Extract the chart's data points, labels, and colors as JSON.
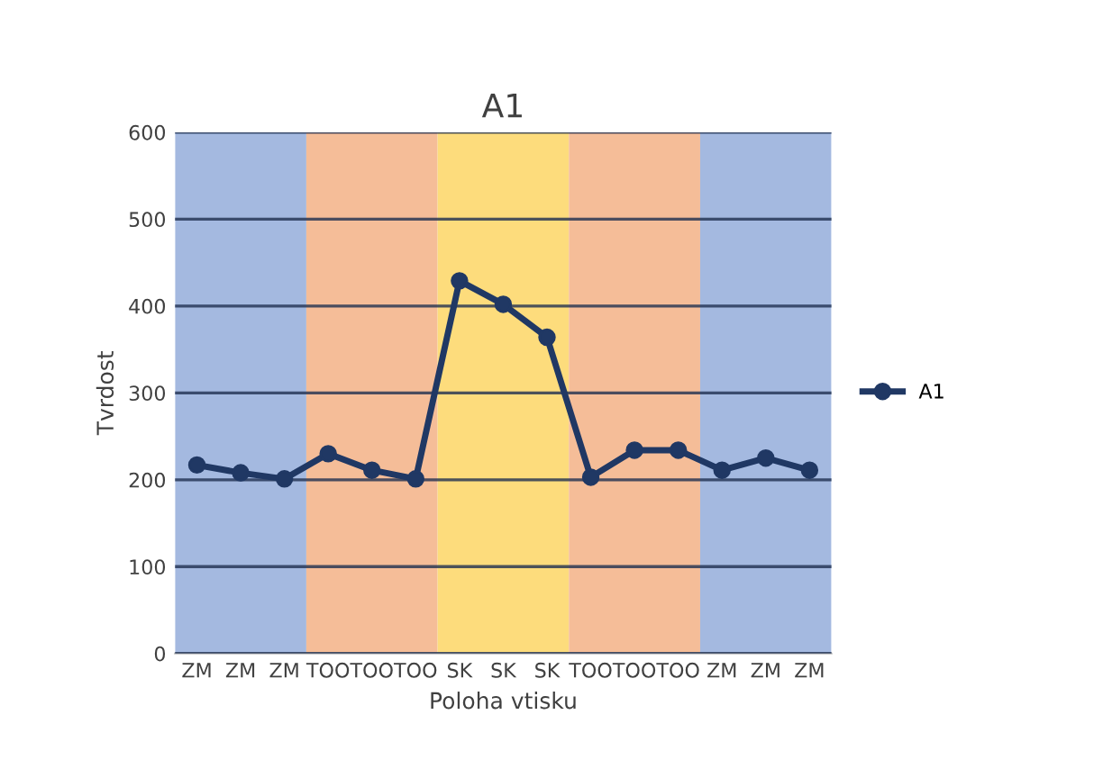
{
  "chart_data": {
    "type": "line",
    "title": "A1",
    "xlabel": "Poloha vtisku",
    "ylabel": "Tvrdost",
    "categories": [
      "ZM",
      "ZM",
      "ZM",
      "TOO",
      "TOO",
      "TOO",
      "SK",
      "SK",
      "SK",
      "TOO",
      "TOO",
      "TOO",
      "ZM",
      "ZM",
      "ZM"
    ],
    "series": [
      {
        "name": "A1",
        "color": "#203864",
        "values": [
          217,
          208,
          201,
          230,
          211,
          201,
          429,
          402,
          364,
          203,
          234,
          234,
          211,
          225,
          211
        ]
      }
    ],
    "ylim": [
      0,
      600
    ],
    "yticks": [
      0,
      100,
      200,
      300,
      400,
      500,
      600
    ],
    "grid": "y",
    "legend": "right",
    "marker": "circle",
    "line_style": "solid"
  }
}
